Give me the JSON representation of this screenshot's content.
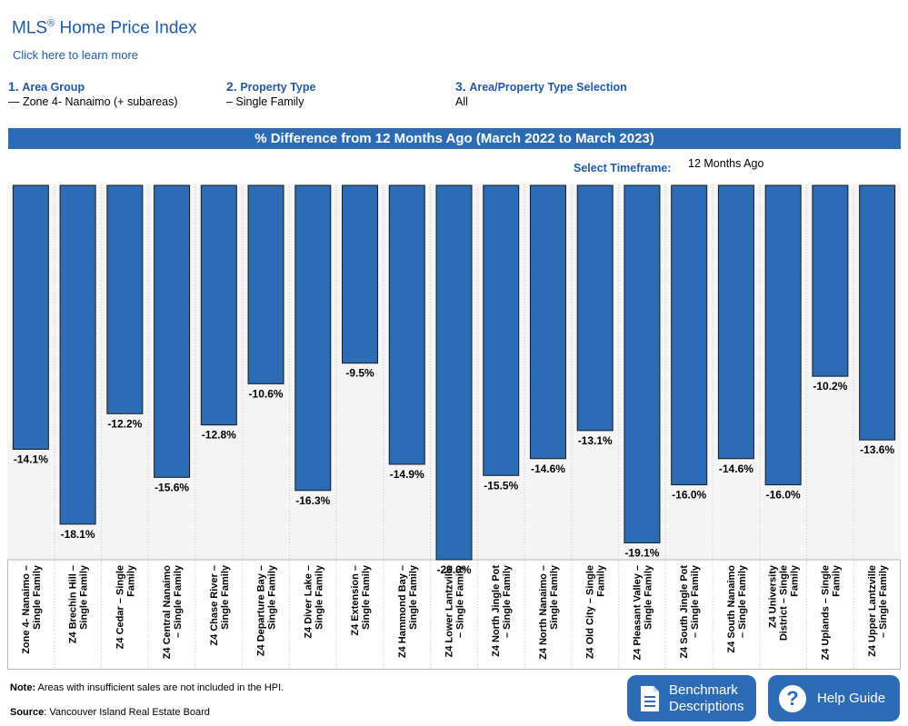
{
  "header": {
    "title": "MLS",
    "title_reg": "®",
    "title_rest": " Home Price Index",
    "learn_more": "Click here to learn more"
  },
  "selectors": [
    {
      "num": "1.",
      "label": "Area Group",
      "value": "— Zone 4- Nanaimo (+ subareas)"
    },
    {
      "num": "2.",
      "label": "Property Type",
      "value": "– Single Family"
    },
    {
      "num": "3.",
      "label": "Area/Property Type Selection",
      "value": "All"
    }
  ],
  "banner": "% Difference from 12 Months Ago (March 2022 to March 2023)",
  "timeframe": {
    "label": "Select Timeframe:",
    "value": "12 Months Ago"
  },
  "chart_data": {
    "type": "bar",
    "title": "% Difference from 12 Months Ago (March 2022 to March 2023)",
    "categories": [
      "Zone 4- Nanaimo – Single Family",
      "Z4 Brechin Hill – Single Family",
      "Z4 Cedar – Single Family",
      "Z4 Central Nanaimo – Single Family",
      "Z4 Chase River – Single Family",
      "Z4 Departure Bay – Single Family",
      "Z4 Diver Lake – Single Family",
      "Z4 Extension – Single Family",
      "Z4 Hammond Bay – Single Family",
      "Z4 Lower Lantzville – Single Family",
      "Z4 North Jingle Pot – Single Family",
      "Z4 North Nanaimo – Single Family",
      "Z4 Old City – Single Family",
      "Z4 Pleasant Valley – Single Family",
      "Z4 South Jingle Pot – Single Family",
      "Z4 South Nanaimo – Single Family",
      "Z4 University District – Single Family",
      "Z4 Uplands – Single Family",
      "Z4 Upper Lantzville – Single Family"
    ],
    "label_lines": [
      [
        "Zone 4- Nanaimo –",
        "Single Family"
      ],
      [
        "Z4 Brechin Hill –",
        "Single Family"
      ],
      [
        "Z4 Cedar – Single",
        "Family"
      ],
      [
        "Z4 Central Nanaimo",
        "– Single Family"
      ],
      [
        "Z4 Chase River –",
        "Single Family"
      ],
      [
        "Z4 Departure Bay –",
        "Single Family"
      ],
      [
        "Z4 Diver Lake –",
        "Single Family"
      ],
      [
        "Z4 Extension –",
        "Single Family"
      ],
      [
        "Z4 Hammond Bay –",
        "Single Family"
      ],
      [
        "Z4 Lower Lantzville",
        "– Single Family"
      ],
      [
        "Z4 North Jingle Pot",
        "– Single Family"
      ],
      [
        "Z4 North Nanaimo –",
        "Single Family"
      ],
      [
        "Z4 Old City – Single",
        "Family"
      ],
      [
        "Z4 Pleasant Valley –",
        "Single Family"
      ],
      [
        "Z4 South Jingle Pot",
        "– Single Family"
      ],
      [
        "Z4 South Nanaimo",
        "– Single Family"
      ],
      [
        "Z4 University",
        "District – Single",
        "Family"
      ],
      [
        "Z4 Uplands – Single",
        "Family"
      ],
      [
        "Z4 Upper Lantzville",
        "– Single Family"
      ]
    ],
    "values": [
      -14.1,
      -18.1,
      -12.2,
      -15.6,
      -12.8,
      -10.6,
      -16.3,
      -9.5,
      -14.9,
      -20.0,
      -15.5,
      -14.6,
      -13.1,
      -19.1,
      -16.0,
      -14.6,
      -16.0,
      -10.2,
      -13.6
    ],
    "data_labels": [
      "-14.1%",
      "-18.1%",
      "-12.2%",
      "-15.6%",
      "-12.8%",
      "-10.6%",
      "-16.3%",
      "-9.5%",
      "-14.9%",
      "-20.0%",
      "-15.5%",
      "-14.6%",
      "-13.1%",
      "-19.1%",
      "-16.0%",
      "-14.6%",
      "-16.0%",
      "-10.2%",
      "-13.6%"
    ],
    "ylim": [
      -20,
      0
    ],
    "bar_color": "#2b6cb5",
    "grid": "vertical dotted separators"
  },
  "footer": {
    "note_bold": "Note:",
    "note_text": " Areas with insufficient sales are not included in the HPI.",
    "source_bold": "Source",
    "source_text": ": Vancouver Island Real Estate Board"
  },
  "buttons": {
    "benchmark_line1": "Benchmark",
    "benchmark_line2": "Descriptions",
    "help": "Help Guide"
  },
  "colors": {
    "accent": "#1f5aa6",
    "banner": "#2b6cb5",
    "button": "#2b6cb5"
  }
}
